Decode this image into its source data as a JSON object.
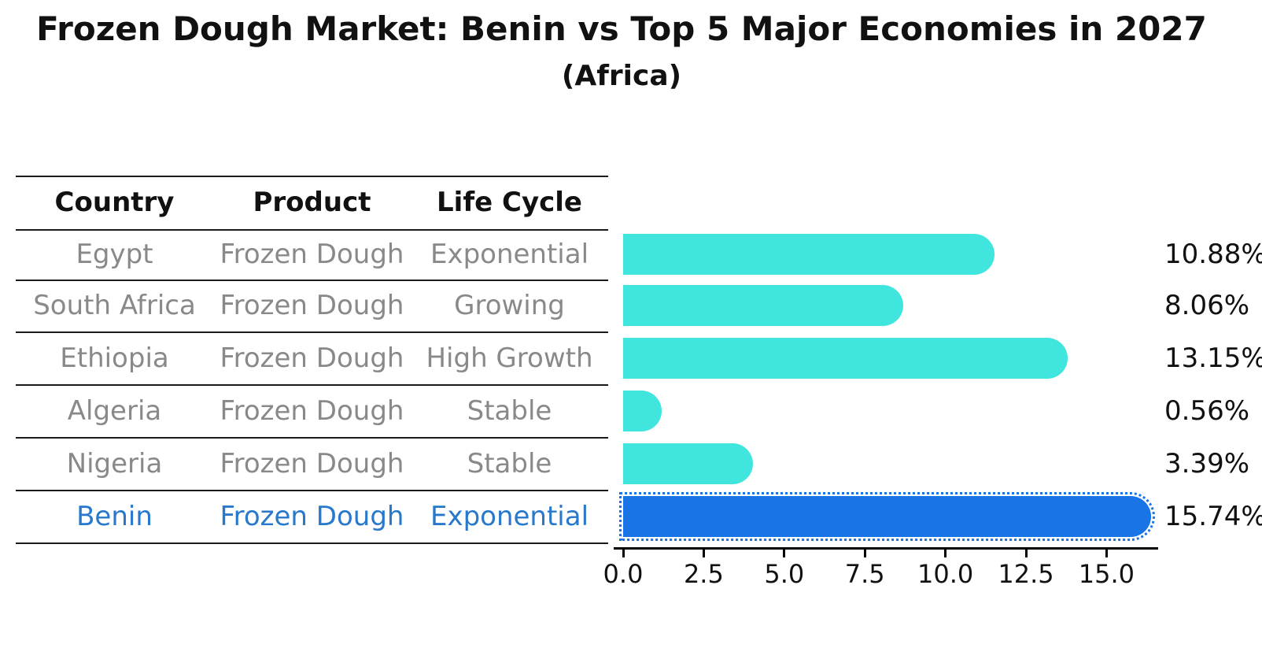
{
  "title": "Frozen Dough Market: Benin vs Top 5 Major Economies in 2027",
  "subtitle": "(Africa)",
  "table": {
    "headers": [
      "Country",
      "Product",
      "Life Cycle"
    ],
    "rows": [
      {
        "country": "Egypt",
        "product": "Frozen Dough",
        "life_cycle": "Exponential",
        "highlight": false
      },
      {
        "country": "South Africa",
        "product": "Frozen Dough",
        "life_cycle": "Growing",
        "highlight": false
      },
      {
        "country": "Ethiopia",
        "product": "Frozen Dough",
        "life_cycle": "High Growth",
        "highlight": false
      },
      {
        "country": "Algeria",
        "product": "Frozen Dough",
        "life_cycle": "Stable",
        "highlight": false
      },
      {
        "country": "Nigeria",
        "product": "Frozen Dough",
        "life_cycle": "Stable",
        "highlight": false
      },
      {
        "country": "Benin",
        "product": "Frozen Dough",
        "life_cycle": "Exponential",
        "highlight": true
      }
    ]
  },
  "chart_data": {
    "type": "bar",
    "orientation": "horizontal",
    "title": "Frozen Dough Market: Benin vs Top 5 Major Economies in 2027",
    "subtitle": "(Africa)",
    "categories": [
      "Egypt",
      "South Africa",
      "Ethiopia",
      "Algeria",
      "Nigeria",
      "Benin"
    ],
    "values": [
      10.88,
      8.06,
      13.15,
      0.56,
      3.39,
      15.74
    ],
    "value_labels": [
      "10.88%",
      "8.06%",
      "13.15%",
      "0.56%",
      "3.39%",
      "15.74%"
    ],
    "x_ticks": [
      0.0,
      2.5,
      5.0,
      7.5,
      10.0,
      12.5,
      15.0
    ],
    "x_tick_labels": [
      "0.0",
      "2.5",
      "5.0",
      "7.5",
      "10.0",
      "12.5",
      "15.0"
    ],
    "xlim": [
      0,
      16.6
    ],
    "highlight_category": "Benin",
    "grid": false,
    "legend_position": "none"
  },
  "colors": {
    "bar_cyan": "#40E5DE",
    "bar_blue": "#1975E6",
    "highlight_text": "#2878CB",
    "table_text": "#898989",
    "heading_text": "#111111",
    "line": "#1a1a1a"
  }
}
